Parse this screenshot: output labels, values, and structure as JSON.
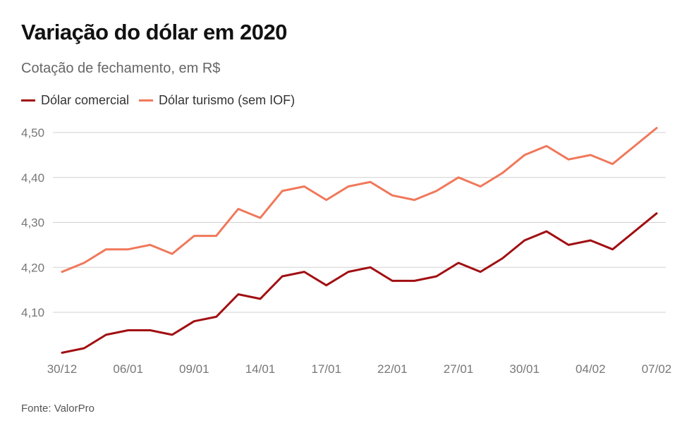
{
  "header": {
    "title": "Variação do dólar em 2020",
    "subtitle": "Cotação de fechamento, em R$"
  },
  "footer": {
    "source": "Fonte: ValorPro"
  },
  "chart_data": {
    "type": "line",
    "title": "Variação do dólar em 2020",
    "subtitle": "Cotação de fechamento, em R$",
    "xlabel": "",
    "ylabel": "",
    "ylim": [
      4.0,
      4.52
    ],
    "yticks": [
      4.1,
      4.2,
      4.3,
      4.4,
      4.5
    ],
    "ytick_labels": [
      "4,10",
      "4,20",
      "4,30",
      "4,40",
      "4,50"
    ],
    "xtick_labels": [
      "30/12",
      "06/01",
      "09/01",
      "14/01",
      "17/01",
      "22/01",
      "27/01",
      "30/01",
      "04/02",
      "07/02"
    ],
    "xtick_indices": [
      0,
      3,
      6,
      9,
      12,
      15,
      18,
      21,
      24,
      27
    ],
    "grid": true,
    "legend_position": "top-left",
    "series": [
      {
        "name": "Dólar comercial",
        "color": "#a10f12",
        "values": [
          4.01,
          4.02,
          4.05,
          4.06,
          4.06,
          4.05,
          4.08,
          4.09,
          4.14,
          4.13,
          4.18,
          4.19,
          4.16,
          4.19,
          4.2,
          4.17,
          4.17,
          4.18,
          4.21,
          4.19,
          4.22,
          4.26,
          4.28,
          4.25,
          4.26,
          4.24,
          4.28,
          4.32
        ]
      },
      {
        "name": "Dólar turismo (sem IOF)",
        "color": "#f0785a",
        "values": [
          4.19,
          4.21,
          4.24,
          4.24,
          4.25,
          4.23,
          4.27,
          4.27,
          4.33,
          4.31,
          4.37,
          4.38,
          4.35,
          4.38,
          4.39,
          4.36,
          4.35,
          4.37,
          4.4,
          4.38,
          4.41,
          4.45,
          4.47,
          4.44,
          4.45,
          4.43,
          4.47,
          4.51
        ]
      }
    ]
  }
}
